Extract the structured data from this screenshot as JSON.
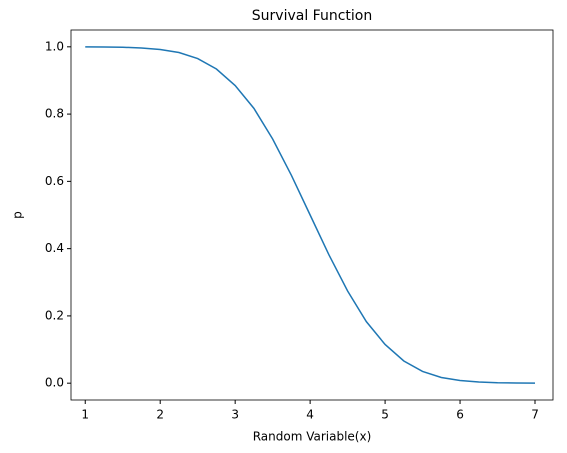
{
  "chart_data": {
    "type": "line",
    "title": "Survival Function",
    "xlabel": "Random Variable(x)",
    "ylabel": "p",
    "x": [
      1,
      1.25,
      1.5,
      1.75,
      2,
      2.25,
      2.5,
      2.75,
      3,
      3.25,
      3.5,
      3.75,
      4,
      4.25,
      4.5,
      4.75,
      5,
      5.25,
      5.5,
      5.75,
      6,
      6.25,
      6.5,
      6.75,
      7
    ],
    "series": [
      {
        "name": "p",
        "color": "#1f77b4",
        "values": [
          1.0,
          0.9995,
          0.9987,
          0.9966,
          0.992,
          0.983,
          0.965,
          0.934,
          0.885,
          0.817,
          0.726,
          0.618,
          0.5,
          0.382,
          0.274,
          0.183,
          0.115,
          0.066,
          0.035,
          0.017,
          0.008,
          0.0034,
          0.0013,
          0.0005,
          0.0
        ]
      }
    ],
    "xlim": [
      0.81,
      7.24
    ],
    "ylim": [
      -0.05,
      1.05
    ],
    "xticks": [
      1,
      2,
      3,
      4,
      5,
      6,
      7
    ],
    "yticks": [
      {
        "value": 0,
        "label": "0.0"
      },
      {
        "value": 0.2,
        "label": "0.2"
      },
      {
        "value": 0.4,
        "label": "0.4"
      },
      {
        "value": 0.6,
        "label": "0.6"
      },
      {
        "value": 0.8,
        "label": "0.8"
      },
      {
        "value": 1,
        "label": "1.0"
      }
    ],
    "grid": false
  }
}
